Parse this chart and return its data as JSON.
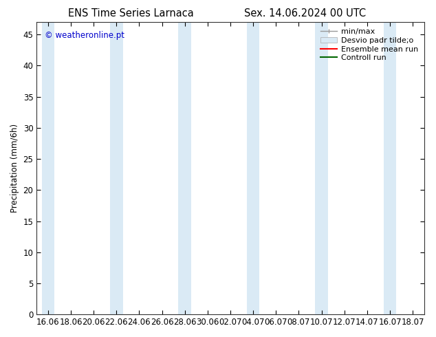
{
  "title_left": "ENS Time Series Larnaca",
  "title_right": "Sex. 14.06.2024 00 UTC",
  "ylabel": "Precipitation (mm/6h)",
  "watermark": "© weatheronline.pt",
  "watermark_color": "#0000cc",
  "background_color": "#ffffff",
  "plot_bg_color": "#ffffff",
  "ylim": [
    0,
    47
  ],
  "yticks": [
    0,
    5,
    10,
    15,
    20,
    25,
    30,
    35,
    40,
    45
  ],
  "xtick_labels": [
    "16.06",
    "18.06",
    "20.06",
    "22.06",
    "24.06",
    "26.06",
    "28.06",
    "30.06",
    "02.07",
    "04.07",
    "06.07",
    "08.07",
    "10.07",
    "12.07",
    "14.07",
    "16.07",
    "18.07"
  ],
  "shaded_band_color": "#daeaf5",
  "shaded_band_alpha": 1.0,
  "shaded_positions": [
    0,
    3,
    6,
    9,
    12,
    15
  ],
  "legend_labels": [
    "min/max",
    "Desvio padr tilde;o",
    "Ensemble mean run",
    "Controll run"
  ],
  "legend_colors": [
    "#999999",
    "#daeaf5",
    "#ff0000",
    "#006600"
  ],
  "font_size": 8.5,
  "title_fontsize": 10.5
}
